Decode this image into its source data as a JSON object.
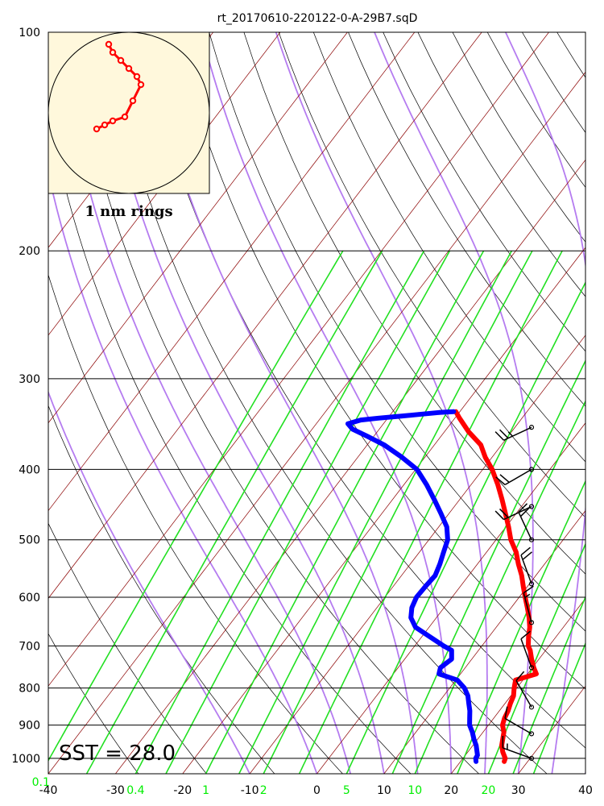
{
  "chart_data": {
    "type": "skew-t",
    "title": "rt_20170610-220122-0-A-29B7.sqD",
    "pressure_ticks": [
      100,
      200,
      300,
      400,
      500,
      600,
      700,
      800,
      900,
      1000
    ],
    "pressure_range": [
      100,
      1050
    ],
    "log_pressure": true,
    "temperature_ticks": [
      -40,
      -30,
      -20,
      -10,
      0,
      10,
      20,
      30,
      40
    ],
    "temperature_range": [
      -40,
      40
    ],
    "mixing_ratio_ticks": [
      {
        "value": 0.1,
        "label": "0.1"
      },
      {
        "value": 0.4,
        "label": "0.4"
      },
      {
        "value": 1,
        "label": "1"
      },
      {
        "value": 2,
        "label": "2"
      },
      {
        "value": 5,
        "label": "5"
      },
      {
        "value": 10,
        "label": "10"
      },
      {
        "value": 20,
        "label": "20"
      }
    ],
    "sst_label": "SST = 28.0",
    "hodograph_label": "1 nm rings",
    "temperature_profile": [
      [
        1010,
        26.5
      ],
      [
        1000,
        26.3
      ],
      [
        980,
        25.2
      ],
      [
        960,
        24.3
      ],
      [
        940,
        23.7
      ],
      [
        920,
        23.1
      ],
      [
        900,
        22.1
      ],
      [
        880,
        21.6
      ],
      [
        860,
        21.3
      ],
      [
        840,
        20.8
      ],
      [
        820,
        20.4
      ],
      [
        800,
        19.6
      ],
      [
        780,
        18.9
      ],
      [
        765,
        21.3
      ],
      [
        750,
        20.2
      ],
      [
        730,
        18.9
      ],
      [
        710,
        17.7
      ],
      [
        700,
        16.9
      ],
      [
        680,
        15.9
      ],
      [
        660,
        15.0
      ],
      [
        640,
        13.8
      ],
      [
        620,
        12.4
      ],
      [
        600,
        10.9
      ],
      [
        580,
        9.4
      ],
      [
        560,
        7.9
      ],
      [
        540,
        6.1
      ],
      [
        520,
        4.4
      ],
      [
        500,
        2.2
      ],
      [
        480,
        0.4
      ],
      [
        460,
        -1.6
      ],
      [
        440,
        -3.7
      ],
      [
        420,
        -6.0
      ],
      [
        400,
        -8.6
      ],
      [
        385,
        -11.0
      ],
      [
        370,
        -13.1
      ],
      [
        355,
        -16.4
      ],
      [
        340,
        -19.3
      ],
      [
        333,
        -20.6
      ]
    ],
    "dewpoint_profile": [
      [
        1010,
        22.3
      ],
      [
        1000,
        21.9
      ],
      [
        990,
        21.8
      ],
      [
        960,
        20.5
      ],
      [
        940,
        19.4
      ],
      [
        920,
        18.4
      ],
      [
        900,
        17.2
      ],
      [
        880,
        16.4
      ],
      [
        860,
        15.6
      ],
      [
        840,
        14.6
      ],
      [
        820,
        13.6
      ],
      [
        800,
        12.2
      ],
      [
        780,
        10.2
      ],
      [
        765,
        6.8
      ],
      [
        750,
        6.3
      ],
      [
        730,
        7.0
      ],
      [
        710,
        6.0
      ],
      [
        700,
        4.3
      ],
      [
        680,
        1.2
      ],
      [
        660,
        -2.0
      ],
      [
        640,
        -3.8
      ],
      [
        620,
        -4.8
      ],
      [
        600,
        -5.3
      ],
      [
        580,
        -5.2
      ],
      [
        560,
        -5.0
      ],
      [
        540,
        -5.6
      ],
      [
        520,
        -6.4
      ],
      [
        500,
        -7.2
      ],
      [
        480,
        -8.8
      ],
      [
        460,
        -11.2
      ],
      [
        440,
        -13.8
      ],
      [
        420,
        -16.6
      ],
      [
        400,
        -19.8
      ],
      [
        385,
        -23.4
      ],
      [
        370,
        -27.5
      ],
      [
        360,
        -31.0
      ],
      [
        352,
        -34.0
      ],
      [
        346,
        -35.3
      ],
      [
        342,
        -33.8
      ],
      [
        340,
        -31.4
      ],
      [
        338,
        -28.5
      ],
      [
        336,
        -25.8
      ],
      [
        334,
        -23.0
      ],
      [
        333,
        -20.9
      ]
    ],
    "wind_barbs": [
      {
        "p": 1000,
        "dir": 290,
        "kt": 15
      },
      {
        "p": 925,
        "dir": 300,
        "kt": 10
      },
      {
        "p": 850,
        "dir": 330,
        "kt": 10
      },
      {
        "p": 750,
        "dir": 340,
        "kt": 10
      },
      {
        "p": 650,
        "dir": 345,
        "kt": 15
      },
      {
        "p": 575,
        "dir": 340,
        "kt": 20
      },
      {
        "p": 500,
        "dir": 335,
        "kt": 20
      },
      {
        "p": 450,
        "dir": 245,
        "kt": 20
      },
      {
        "p": 400,
        "dir": 240,
        "kt": 20
      },
      {
        "p": 350,
        "dir": 245,
        "kt": 25
      }
    ],
    "hodograph_points": [
      [
        -0.8,
        -0.4
      ],
      [
        -0.6,
        -0.3
      ],
      [
        -0.4,
        -0.2
      ],
      [
        -0.1,
        -0.1
      ],
      [
        0.1,
        0.3
      ],
      [
        0.3,
        0.7
      ],
      [
        0.2,
        0.9
      ],
      [
        0.0,
        1.1
      ],
      [
        -0.2,
        1.3
      ],
      [
        -0.4,
        1.5
      ],
      [
        -0.5,
        1.7
      ]
    ]
  }
}
